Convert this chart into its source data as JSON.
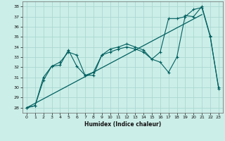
{
  "xlabel": "Humidex (Indice chaleur)",
  "xlim": [
    -0.5,
    23.5
  ],
  "ylim": [
    27.5,
    38.5
  ],
  "yticks": [
    28,
    29,
    30,
    31,
    32,
    33,
    34,
    35,
    36,
    37,
    38
  ],
  "xticks": [
    0,
    1,
    2,
    3,
    4,
    5,
    6,
    7,
    8,
    9,
    10,
    11,
    12,
    13,
    14,
    15,
    16,
    17,
    18,
    19,
    20,
    21,
    22,
    23
  ],
  "bg_color": "#cceee8",
  "grid_color": "#aad8d2",
  "line_color": "#006060",
  "line1_y": [
    28.0,
    28.2,
    30.7,
    32.1,
    32.2,
    33.7,
    32.1,
    31.2,
    31.2,
    33.2,
    33.5,
    33.8,
    34.0,
    33.8,
    33.5,
    32.8,
    32.5,
    31.5,
    33.0,
    37.1,
    37.0,
    38.0,
    35.1,
    29.9
  ],
  "line2_y": [
    28.0,
    28.2,
    31.0,
    32.1,
    32.5,
    33.5,
    33.2,
    31.2,
    31.5,
    33.2,
    33.8,
    34.0,
    34.3,
    34.0,
    33.7,
    32.8,
    33.5,
    36.8,
    36.8,
    37.0,
    37.7,
    37.9,
    35.0,
    30.0
  ],
  "trend_x": [
    0,
    21
  ],
  "trend_y": [
    28.0,
    37.2
  ]
}
